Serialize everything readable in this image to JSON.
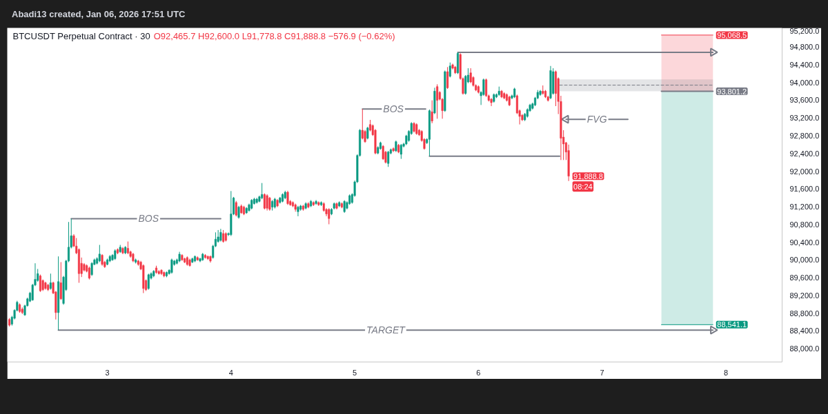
{
  "chart_data": {
    "type": "candlestick",
    "title": "BTCUSDT Perpetual Contract · 30",
    "subtitle": "O92,465.7 H92,600.0 L91,778.8 C91,888.8 −576.9 (−0.62%)",
    "annotations": [
      "Abadi13 created, Jan 06, 2026 17:51 UTC",
      {
        "text": "BOS",
        "x": "2026-01-03T08:00",
        "y": 90930
      },
      {
        "text": "BOS",
        "x": "2026-01-05T07:30",
        "y": 93400
      },
      {
        "text": "FVG",
        "x": "2026-01-06T23:00",
        "y": 93170
      },
      {
        "text": "TARGET",
        "x": "2026-01-05T06:00",
        "y": 88420
      }
    ],
    "x": [
      "2026-01-02T05:00",
      "2026-01-02T05:30",
      "2026-01-02T06:00",
      "2026-01-02T06:30",
      "2026-01-02T07:00",
      "2026-01-02T07:30",
      "2026-01-02T08:00",
      "2026-01-02T08:30",
      "2026-01-02T09:00",
      "2026-01-02T09:30",
      "2026-01-02T10:00",
      "2026-01-02T10:30",
      "2026-01-02T11:00",
      "2026-01-02T11:30",
      "2026-01-02T12:00",
      "2026-01-02T12:30",
      "2026-01-02T13:00",
      "2026-01-02T13:30",
      "2026-01-02T14:00",
      "2026-01-02T14:30",
      "2026-01-02T15:00",
      "2026-01-02T15:30",
      "2026-01-02T16:00",
      "2026-01-02T16:30",
      "2026-01-02T17:00",
      "2026-01-02T17:30",
      "2026-01-02T18:00",
      "2026-01-02T18:30",
      "2026-01-02T19:00",
      "2026-01-02T19:30",
      "2026-01-02T20:00",
      "2026-01-02T20:30",
      "2026-01-02T21:00",
      "2026-01-02T21:30",
      "2026-01-02T22:00",
      "2026-01-02T22:30",
      "2026-01-02T23:00",
      "2026-01-02T23:30",
      "2026-01-03T00:00",
      "2026-01-03T00:30",
      "2026-01-03T01:00",
      "2026-01-03T01:30",
      "2026-01-03T02:00",
      "2026-01-03T02:30",
      "2026-01-03T03:00",
      "2026-01-03T03:30",
      "2026-01-03T04:00",
      "2026-01-03T04:30",
      "2026-01-03T05:00",
      "2026-01-03T05:30",
      "2026-01-03T06:00",
      "2026-01-03T06:30",
      "2026-01-03T07:00",
      "2026-01-03T07:30",
      "2026-01-03T08:00",
      "2026-01-03T08:30",
      "2026-01-03T09:00",
      "2026-01-03T09:30",
      "2026-01-03T10:00",
      "2026-01-03T10:30",
      "2026-01-03T11:00",
      "2026-01-03T11:30",
      "2026-01-03T12:00",
      "2026-01-03T12:30",
      "2026-01-03T13:00",
      "2026-01-03T13:30",
      "2026-01-03T14:00",
      "2026-01-03T14:30",
      "2026-01-03T15:00",
      "2026-01-03T15:30",
      "2026-01-03T16:00",
      "2026-01-03T16:30",
      "2026-01-03T17:00",
      "2026-01-03T17:30",
      "2026-01-03T18:00",
      "2026-01-03T18:30",
      "2026-01-03T19:00",
      "2026-01-03T19:30",
      "2026-01-03T20:00",
      "2026-01-03T20:30",
      "2026-01-03T21:00",
      "2026-01-03T21:30",
      "2026-01-03T22:00",
      "2026-01-03T22:30",
      "2026-01-03T23:00",
      "2026-01-03T23:30",
      "2026-01-04T00:00",
      "2026-01-04T00:30",
      "2026-01-04T01:00",
      "2026-01-04T01:30",
      "2026-01-04T02:00",
      "2026-01-04T02:30",
      "2026-01-04T03:00",
      "2026-01-04T03:30",
      "2026-01-04T04:00",
      "2026-01-04T04:30",
      "2026-01-04T05:00",
      "2026-01-04T05:30",
      "2026-01-04T06:00",
      "2026-01-04T06:30",
      "2026-01-04T07:00",
      "2026-01-04T07:30",
      "2026-01-04T08:00",
      "2026-01-04T08:30",
      "2026-01-04T09:00",
      "2026-01-04T09:30",
      "2026-01-04T10:00",
      "2026-01-04T10:30",
      "2026-01-04T11:00",
      "2026-01-04T11:30",
      "2026-01-04T12:00",
      "2026-01-04T12:30",
      "2026-01-04T13:00",
      "2026-01-04T13:30",
      "2026-01-04T14:00",
      "2026-01-04T14:30",
      "2026-01-04T15:00",
      "2026-01-04T15:30",
      "2026-01-04T16:00",
      "2026-01-04T16:30",
      "2026-01-04T17:00",
      "2026-01-04T17:30",
      "2026-01-04T18:00",
      "2026-01-04T18:30",
      "2026-01-04T19:00",
      "2026-01-04T19:30",
      "2026-01-04T20:00",
      "2026-01-04T20:30",
      "2026-01-04T21:00",
      "2026-01-04T21:30",
      "2026-01-04T22:00",
      "2026-01-04T22:30",
      "2026-01-04T23:00",
      "2026-01-04T23:30",
      "2026-01-05T00:00",
      "2026-01-05T00:30",
      "2026-01-05T01:00",
      "2026-01-05T01:30",
      "2026-01-05T02:00",
      "2026-01-05T02:30",
      "2026-01-05T03:00",
      "2026-01-05T03:30",
      "2026-01-05T04:00",
      "2026-01-05T04:30",
      "2026-01-05T05:00",
      "2026-01-05T05:30",
      "2026-01-05T06:00",
      "2026-01-05T06:30",
      "2026-01-05T07:00",
      "2026-01-05T07:30",
      "2026-01-05T08:00",
      "2026-01-05T08:30",
      "2026-01-05T09:00",
      "2026-01-05T09:30",
      "2026-01-05T10:00",
      "2026-01-05T10:30",
      "2026-01-05T11:00",
      "2026-01-05T11:30",
      "2026-01-05T12:00",
      "2026-01-05T12:30",
      "2026-01-05T13:00",
      "2026-01-05T13:30",
      "2026-01-05T14:00",
      "2026-01-05T14:30",
      "2026-01-05T15:00",
      "2026-01-05T15:30",
      "2026-01-05T16:00",
      "2026-01-05T16:30",
      "2026-01-05T17:00",
      "2026-01-05T17:30",
      "2026-01-05T18:00",
      "2026-01-05T18:30",
      "2026-01-05T19:00",
      "2026-01-05T19:30",
      "2026-01-05T20:00",
      "2026-01-05T20:30",
      "2026-01-05T21:00",
      "2026-01-05T21:30",
      "2026-01-05T22:00",
      "2026-01-05T22:30",
      "2026-01-05T23:00",
      "2026-01-05T23:30",
      "2026-01-06T00:00",
      "2026-01-06T00:30",
      "2026-01-06T01:00",
      "2026-01-06T01:30",
      "2026-01-06T02:00",
      "2026-01-06T02:30",
      "2026-01-06T03:00",
      "2026-01-06T03:30",
      "2026-01-06T04:00",
      "2026-01-06T04:30",
      "2026-01-06T05:00",
      "2026-01-06T05:30",
      "2026-01-06T06:00",
      "2026-01-06T06:30",
      "2026-01-06T07:00",
      "2026-01-06T07:30",
      "2026-01-06T08:00",
      "2026-01-06T08:30",
      "2026-01-06T09:00",
      "2026-01-06T09:30",
      "2026-01-06T10:00",
      "2026-01-06T10:30",
      "2026-01-06T11:00",
      "2026-01-06T11:30",
      "2026-01-06T12:00",
      "2026-01-06T12:30",
      "2026-01-06T13:00",
      "2026-01-06T13:30",
      "2026-01-06T14:00",
      "2026-01-06T14:30",
      "2026-01-06T15:00",
      "2026-01-06T15:30",
      "2026-01-06T16:00",
      "2026-01-06T16:30",
      "2026-01-06T17:00",
      "2026-01-06T17:30"
    ],
    "ohlc": [
      [
        88658,
        88690,
        88500,
        88529
      ],
      [
        88554,
        88740,
        88520,
        88710
      ],
      [
        88684,
        88890,
        88660,
        88865
      ],
      [
        88865,
        89080,
        88840,
        89046
      ],
      [
        88994,
        89020,
        88810,
        88839
      ],
      [
        88890,
        88930,
        88780,
        88813
      ],
      [
        88761,
        88990,
        88740,
        88968
      ],
      [
        88968,
        89150,
        88950,
        89123
      ],
      [
        89071,
        89280,
        89050,
        89253
      ],
      [
        89097,
        89460,
        89080,
        89434
      ],
      [
        89434,
        89925,
        89410,
        89563
      ],
      [
        89537,
        89796,
        89510,
        89692
      ],
      [
        89640,
        89670,
        89280,
        89304
      ],
      [
        89537,
        89560,
        89300,
        89330
      ],
      [
        89485,
        89510,
        89330,
        89356
      ],
      [
        89434,
        89460,
        89300,
        89330
      ],
      [
        89356,
        89692,
        89330,
        89485
      ],
      [
        89485,
        89510,
        89230,
        89253
      ],
      [
        89278,
        89300,
        88658,
        88813
      ],
      [
        88813,
        90080,
        88420,
        89511
      ],
      [
        89485,
        89951,
        89100,
        89123
      ],
      [
        89020,
        89640,
        88990,
        89615
      ],
      [
        89330,
        90000,
        89300,
        89977
      ],
      [
        89977,
        90856,
        89950,
        90287
      ],
      [
        90287,
        90930,
        90260,
        90545
      ],
      [
        90545,
        90580,
        90290,
        90313
      ],
      [
        90313,
        90494,
        90130,
        90158
      ],
      [
        90235,
        90260,
        89485,
        89692
      ],
      [
        89925,
        90054,
        89615,
        89692
      ],
      [
        89899,
        89930,
        89740,
        89770
      ],
      [
        89873,
        89900,
        89720,
        89744
      ],
      [
        89821,
        89850,
        89560,
        89589
      ],
      [
        89666,
        89950,
        89640,
        89925
      ],
      [
        89899,
        90030,
        89880,
        90002
      ],
      [
        89925,
        90060,
        89900,
        90028
      ],
      [
        89977,
        90339,
        89950,
        90132
      ],
      [
        90106,
        90130,
        89870,
        89899
      ],
      [
        89951,
        89980,
        89820,
        89847
      ],
      [
        89899,
        90030,
        89880,
        90002
      ],
      [
        89977,
        90110,
        89950,
        90080
      ],
      [
        90002,
        90130,
        89980,
        90106
      ],
      [
        90028,
        90240,
        90000,
        90209
      ],
      [
        90235,
        90260,
        90130,
        90158
      ],
      [
        90183,
        90339,
        90160,
        90287
      ],
      [
        90261,
        90290,
        90130,
        90158
      ],
      [
        90158,
        90310,
        90130,
        90287
      ],
      [
        90261,
        90416,
        90130,
        90158
      ],
      [
        90183,
        90210,
        90050,
        90080
      ],
      [
        90132,
        90160,
        89950,
        89977
      ],
      [
        89951,
        90030,
        89920,
        90002
      ],
      [
        89977,
        90000,
        89870,
        89899
      ],
      [
        89951,
        89980,
        89770,
        89796
      ],
      [
        89873,
        89900,
        89253,
        89356
      ],
      [
        89537,
        89560,
        89300,
        89330
      ],
      [
        89356,
        89690,
        89330,
        89666
      ],
      [
        89589,
        89720,
        89560,
        89692
      ],
      [
        89640,
        89770,
        89610,
        89744
      ],
      [
        89821,
        89870,
        89690,
        89718
      ],
      [
        89743,
        89770,
        89670,
        89691
      ],
      [
        89769,
        89790,
        89660,
        89691
      ],
      [
        89717,
        89740,
        89610,
        89640
      ],
      [
        89640,
        89740,
        89610,
        89717
      ],
      [
        89691,
        89790,
        89670,
        89769
      ],
      [
        89717,
        90030,
        89690,
        90002
      ],
      [
        89898,
        90000,
        89870,
        89976
      ],
      [
        89924,
        90030,
        89900,
        90002
      ],
      [
        89976,
        90183,
        89950,
        90131
      ],
      [
        90105,
        90130,
        89980,
        90002
      ],
      [
        90028,
        90050,
        89930,
        89950
      ],
      [
        90054,
        90080,
        89870,
        89898
      ],
      [
        90002,
        90030,
        89850,
        89872
      ],
      [
        89950,
        90050,
        89930,
        90028
      ],
      [
        89976,
        90100,
        89950,
        90079
      ],
      [
        90054,
        90080,
        89980,
        90002
      ],
      [
        89976,
        90050,
        89950,
        90028
      ],
      [
        90002,
        90157,
        89980,
        90131
      ],
      [
        90105,
        90130,
        90030,
        90054
      ],
      [
        90079,
        90100,
        90000,
        90028
      ],
      [
        90079,
        90100,
        89940,
        89976
      ],
      [
        90054,
        90340,
        90030,
        90312
      ],
      [
        90312,
        90622,
        90290,
        90467
      ],
      [
        90415,
        90674,
        90390,
        90519
      ],
      [
        90441,
        90700,
        90415,
        90622
      ],
      [
        90596,
        90674,
        90390,
        90415
      ],
      [
        90596,
        90622,
        90415,
        90441
      ],
      [
        90570,
        90620,
        90540,
        90596
      ],
      [
        90570,
        91553,
        90540,
        91036
      ],
      [
        91036,
        91420,
        91010,
        91398
      ],
      [
        91295,
        91330,
        90980,
        91010
      ],
      [
        90959,
        91220,
        90930,
        91191
      ],
      [
        91217,
        91250,
        91040,
        91062
      ],
      [
        91191,
        91220,
        91010,
        91036
      ],
      [
        91062,
        91190,
        91040,
        91165
      ],
      [
        91114,
        91270,
        91090,
        91243
      ],
      [
        91165,
        91370,
        91140,
        91346
      ],
      [
        91269,
        91400,
        91250,
        91372
      ],
      [
        91295,
        91400,
        91270,
        91372
      ],
      [
        91321,
        91450,
        91300,
        91424
      ],
      [
        91398,
        91734,
        91370,
        91476
      ],
      [
        91476,
        91500,
        91140,
        91165
      ],
      [
        91450,
        91480,
        91114,
        91165
      ],
      [
        91398,
        91420,
        91110,
        91140
      ],
      [
        91191,
        91350,
        91114,
        91321
      ],
      [
        91191,
        91400,
        91160,
        91372
      ],
      [
        91346,
        91370,
        91190,
        91217
      ],
      [
        91295,
        91420,
        91270,
        91398
      ],
      [
        91321,
        91500,
        91300,
        91476
      ],
      [
        91398,
        91560,
        91370,
        91527
      ],
      [
        91527,
        91560,
        91240,
        91269
      ],
      [
        91321,
        91350,
        91220,
        91243
      ],
      [
        91295,
        91320,
        91190,
        91217
      ],
      [
        91243,
        91270,
        91088,
        91140
      ],
      [
        91088,
        91220,
        90985,
        91191
      ],
      [
        91140,
        91240,
        91110,
        91217
      ],
      [
        91217,
        91240,
        91110,
        91140
      ],
      [
        91166,
        91300,
        91140,
        91269
      ],
      [
        91269,
        91300,
        91166,
        91191
      ],
      [
        91217,
        91350,
        91191,
        91321
      ],
      [
        91295,
        91320,
        91217,
        91243
      ],
      [
        91269,
        91350,
        91243,
        91321
      ],
      [
        91295,
        91320,
        91217,
        91243
      ],
      [
        91243,
        91320,
        91217,
        91295
      ],
      [
        91269,
        91300,
        91088,
        91114
      ],
      [
        91140,
        91166,
        90985,
        91036
      ],
      [
        91140,
        91166,
        90804,
        90933
      ],
      [
        91036,
        91166,
        91010,
        91140
      ],
      [
        91166,
        91295,
        91140,
        91269
      ],
      [
        91269,
        91295,
        91140,
        91166
      ],
      [
        91217,
        91321,
        91191,
        91295
      ],
      [
        91269,
        91295,
        91166,
        91191
      ],
      [
        91088,
        91346,
        91062,
        91321
      ],
      [
        91166,
        91321,
        91140,
        91295
      ],
      [
        91269,
        91476,
        91243,
        91450
      ],
      [
        91295,
        91502,
        91269,
        91476
      ],
      [
        91450,
        91790,
        91424,
        91760
      ],
      [
        91760,
        92380,
        91734,
        92355
      ],
      [
        92355,
        92950,
        92330,
        92924
      ],
      [
        92924,
        93400,
        92717,
        92743
      ],
      [
        92898,
        92930,
        92640,
        92665
      ],
      [
        92743,
        93000,
        92717,
        92976
      ],
      [
        93053,
        93157,
        92898,
        92924
      ],
      [
        93028,
        93053,
        92795,
        92821
      ],
      [
        92924,
        92950,
        92381,
        92407
      ],
      [
        92407,
        92562,
        92381,
        92536
      ],
      [
        92510,
        92665,
        92485,
        92640
      ],
      [
        92562,
        92588,
        92252,
        92278
      ],
      [
        92433,
        92459,
        92174,
        92200
      ],
      [
        92174,
        92459,
        92097,
        92433
      ],
      [
        92407,
        92510,
        92381,
        92485
      ],
      [
        92510,
        92536,
        92433,
        92459
      ],
      [
        92459,
        92691,
        92433,
        92665
      ],
      [
        92588,
        92614,
        92407,
        92433
      ],
      [
        92381,
        92614,
        92278,
        92588
      ],
      [
        92562,
        92640,
        92536,
        92614
      ],
      [
        92614,
        92821,
        92588,
        92795
      ],
      [
        92691,
        92924,
        92665,
        92898
      ],
      [
        92846,
        93105,
        92821,
        93079
      ],
      [
        93079,
        93105,
        92872,
        92898
      ],
      [
        93053,
        93079,
        92821,
        92846
      ],
      [
        92924,
        92950,
        92795,
        92821
      ],
      [
        92898,
        92924,
        92665,
        92691
      ],
      [
        92717,
        92743,
        92485,
        92510
      ],
      [
        92640,
        92743,
        92614,
        92717
      ],
      [
        92717,
        93390,
        92340,
        93364
      ],
      [
        93338,
        93597,
        93080,
        93131
      ],
      [
        93312,
        93881,
        93287,
        93804
      ],
      [
        93907,
        93959,
        93183,
        93597
      ],
      [
        93778,
        93804,
        93597,
        93623
      ],
      [
        93623,
        93649,
        93183,
        93364
      ],
      [
        93364,
        94269,
        93338,
        94243
      ],
      [
        94243,
        94347,
        93855,
        93881
      ],
      [
        94140,
        94450,
        94114,
        94372
      ],
      [
        94398,
        94424,
        94295,
        94321
      ],
      [
        94347,
        94372,
        94192,
        94217
      ],
      [
        94217,
        94680,
        94192,
        94657
      ],
      [
        94631,
        94657,
        94062,
        94088
      ],
      [
        94088,
        94114,
        93726,
        93752
      ],
      [
        93752,
        94166,
        93726,
        94140
      ],
      [
        94011,
        94321,
        93985,
        94166
      ],
      [
        94217,
        94321,
        93985,
        94011
      ],
      [
        94114,
        94140,
        93907,
        93933
      ],
      [
        93933,
        93959,
        93804,
        93830
      ],
      [
        93907,
        93933,
        93752,
        93778
      ],
      [
        93700,
        93804,
        93493,
        93778
      ],
      [
        93726,
        94088,
        93700,
        94062
      ],
      [
        94062,
        94088,
        93674,
        93700
      ],
      [
        93700,
        93726,
        93571,
        93597
      ],
      [
        93623,
        93649,
        93467,
        93545
      ],
      [
        93571,
        93752,
        93545,
        93726
      ],
      [
        93674,
        93752,
        93649,
        93726
      ],
      [
        93726,
        93907,
        93700,
        93804
      ],
      [
        93804,
        93830,
        93649,
        93674
      ],
      [
        93752,
        93778,
        93623,
        93649
      ],
      [
        93726,
        93752,
        93571,
        93597
      ],
      [
        93674,
        93700,
        93467,
        93493
      ],
      [
        93649,
        93726,
        93623,
        93700
      ],
      [
        93674,
        93881,
        93649,
        93855
      ],
      [
        93700,
        93726,
        93287,
        93312
      ],
      [
        93364,
        93390,
        93054,
        93235
      ],
      [
        93261,
        93287,
        93131,
        93157
      ],
      [
        93157,
        93312,
        93131,
        93287
      ],
      [
        93235,
        93416,
        93209,
        93390
      ],
      [
        93364,
        93519,
        93338,
        93493
      ],
      [
        93416,
        93545,
        93390,
        93519
      ],
      [
        93493,
        93674,
        93467,
        93649
      ],
      [
        93649,
        93830,
        93623,
        93778
      ],
      [
        93726,
        93830,
        93700,
        93804
      ],
      [
        93804,
        93933,
        93726,
        93752
      ],
      [
        93804,
        93830,
        93649,
        93674
      ],
      [
        93674,
        93700,
        93571,
        93597
      ],
      [
        93649,
        94372,
        93623,
        94269
      ],
      [
        93752,
        94321,
        93726,
        94243
      ],
      [
        94243,
        94269,
        93467,
        93752
      ],
      [
        94088,
        94114,
        93287,
        93571
      ],
      [
        93571,
        93700,
        92252,
        92743
      ],
      [
        92769,
        92924,
        92252,
        92614
      ],
      [
        92640,
        92660,
        92252,
        92433
      ],
      [
        92465.7,
        92600.0,
        91778.8,
        91888.8
      ]
    ],
    "value_labels": [
      null,
      null,
      null,
      null,
      null,
      null,
      null,
      null,
      null,
      null,
      null,
      null,
      null,
      null,
      null,
      null,
      null,
      null,
      null,
      null,
      null,
      null,
      null,
      null,
      null,
      null,
      null,
      null,
      null,
      null,
      null,
      null,
      null,
      null,
      null,
      null,
      null,
      null,
      null,
      null,
      null,
      null,
      null,
      null,
      null,
      null,
      null,
      null,
      null,
      null,
      null,
      null,
      null,
      null,
      null,
      null,
      null,
      null,
      null,
      null,
      null,
      null,
      null,
      null,
      null,
      null,
      null,
      null,
      null,
      null,
      null,
      null,
      null,
      null,
      null,
      null,
      null,
      null,
      null,
      null,
      null,
      null,
      null,
      null,
      null,
      null,
      null,
      null,
      null,
      null,
      null,
      null,
      null,
      null,
      null,
      null,
      null,
      null,
      null,
      null,
      null,
      null,
      null,
      null,
      null,
      null,
      null,
      null,
      null,
      null,
      null,
      null,
      null,
      null,
      null,
      null,
      null,
      null,
      null,
      null,
      null,
      null,
      null,
      null,
      null,
      null,
      null,
      null,
      null,
      null,
      null,
      null,
      null,
      null,
      null,
      null,
      null,
      null,
      null,
      null,
      null,
      null,
      null,
      null,
      null,
      null,
      null,
      null,
      null,
      null,
      null,
      null,
      null,
      null,
      null,
      null,
      null,
      null,
      null,
      null,
      null,
      null,
      null,
      null,
      null,
      null,
      null,
      null,
      null,
      null,
      null,
      null,
      null,
      null,
      null,
      null,
      null,
      null,
      null,
      null,
      null,
      null,
      null,
      null,
      null,
      null,
      null,
      null,
      null,
      null,
      null,
      null,
      null,
      null,
      null,
      null,
      null,
      null,
      null,
      null,
      null,
      null,
      null,
      null,
      null,
      null,
      null,
      null,
      null,
      null,
      null,
      null,
      null,
      null,
      null,
      null,
      null,
      "91,888.8\n08:24"
    ],
    "series": [
      {
        "type": "line",
        "color": "#f23645",
        "x": [
          "2026-01-07T11:30",
          "2026-01-07T21:30"
        ],
        "values": [
          95068.5,
          95068.5
        ],
        "lower": [
          93801.2,
          93801.2
        ],
        "upper": [
          95068.5,
          95068.5
        ],
        "value_labels": [
          null,
          "95,068.5"
        ]
      },
      {
        "type": "line",
        "color": "#089981",
        "x": [
          "2026-01-07T11:30",
          "2026-01-07T21:30"
        ],
        "values": [
          88541.1,
          88541.1
        ],
        "lower": [
          88541.1,
          88541.1
        ],
        "upper": [
          93801.2,
          93801.2
        ],
        "value_labels": [
          null,
          "88,541.1"
        ]
      },
      {
        "type": "line",
        "color": "#787b86",
        "line_style": "dashed",
        "x": [
          "2026-01-06T15:45",
          "2026-01-07T21:30"
        ],
        "values": [
          93940,
          93940
        ],
        "lower": [
          93801.2,
          93801.2
        ],
        "upper": [
          94070,
          94070
        ]
      },
      {
        "type": "line",
        "color": "#787b86",
        "x": [
          "2026-01-07T11:30",
          "2026-01-07T21:30"
        ],
        "values": [
          93801.2,
          93801.2
        ],
        "value_labels": [
          null,
          "93,801.2"
        ]
      },
      {
        "type": "line",
        "color": "#787b86",
        "x": [
          "2026-01-02T17:00",
          "2026-01-03T22:00"
        ],
        "values": [
          90930,
          90930
        ]
      },
      {
        "type": "line",
        "color": "#787b86",
        "x": [
          "2026-01-05T01:30",
          "2026-01-05T13:45"
        ],
        "values": [
          93400,
          93400
        ]
      },
      {
        "type": "line",
        "color": "#787b86",
        "x": [
          "2026-01-05T14:30",
          "2026-01-06T15:45"
        ],
        "values": [
          92340,
          92340
        ]
      },
      {
        "type": "line",
        "color": "#787b86",
        "marker": "triangle",
        "x": [
          "2026-01-05T20:00",
          "2026-01-07T21:30"
        ],
        "values": [
          94680,
          94680
        ]
      },
      {
        "type": "line",
        "color": "#787b86",
        "marker": "triangle",
        "x": [
          "2026-01-02T14:30",
          "2026-01-07T21:30"
        ],
        "values": [
          88420,
          88420
        ]
      },
      {
        "type": "line",
        "color": "#787b86",
        "marker": "triangle",
        "x": [
          "2026-01-07T05:00",
          "2026-01-06T17:00"
        ],
        "values": [
          93170,
          93170
        ]
      }
    ],
    "xlim": [
      "2026-01-02T04:35",
      "2026-01-08T10:55"
    ],
    "xticks": [
      {
        "value": "2026-01-03",
        "label": "3"
      },
      {
        "value": "2026-01-04",
        "label": "4"
      },
      {
        "value": "2026-01-05",
        "label": "5"
      },
      {
        "value": "2026-01-06",
        "label": "6"
      },
      {
        "value": "2026-01-07",
        "label": "7"
      },
      {
        "value": "2026-01-08",
        "label": "8"
      }
    ],
    "ylim": [
      87700,
      95230
    ],
    "yticks": [
      {
        "value": 88000,
        "label": "88,000.0"
      },
      {
        "value": 88400,
        "label": "88,400.0"
      },
      {
        "value": 88800,
        "label": "88,800.0"
      },
      {
        "value": 89200,
        "label": "89,200.0"
      },
      {
        "value": 89600,
        "label": "89,600.0"
      },
      {
        "value": 90000,
        "label": "90,000.0"
      },
      {
        "value": 90400,
        "label": "90,400.0"
      },
      {
        "value": 90800,
        "label": "90,800.0"
      },
      {
        "value": 91200,
        "label": "91,200.0"
      },
      {
        "value": 91600,
        "label": "91,600.0"
      },
      {
        "value": 92000,
        "label": "92,000.0"
      },
      {
        "value": 92400,
        "label": "92,400.0"
      },
      {
        "value": 92800,
        "label": "92,800.0"
      },
      {
        "value": 93200,
        "label": "93,200.0"
      },
      {
        "value": 93600,
        "label": "93,600.0"
      },
      {
        "value": 94000,
        "label": "94,000.0"
      },
      {
        "value": 94400,
        "label": "94,400.0"
      },
      {
        "value": 94800,
        "label": "94,800.0"
      },
      {
        "value": 95200,
        "label": "95,200.0"
      }
    ]
  }
}
